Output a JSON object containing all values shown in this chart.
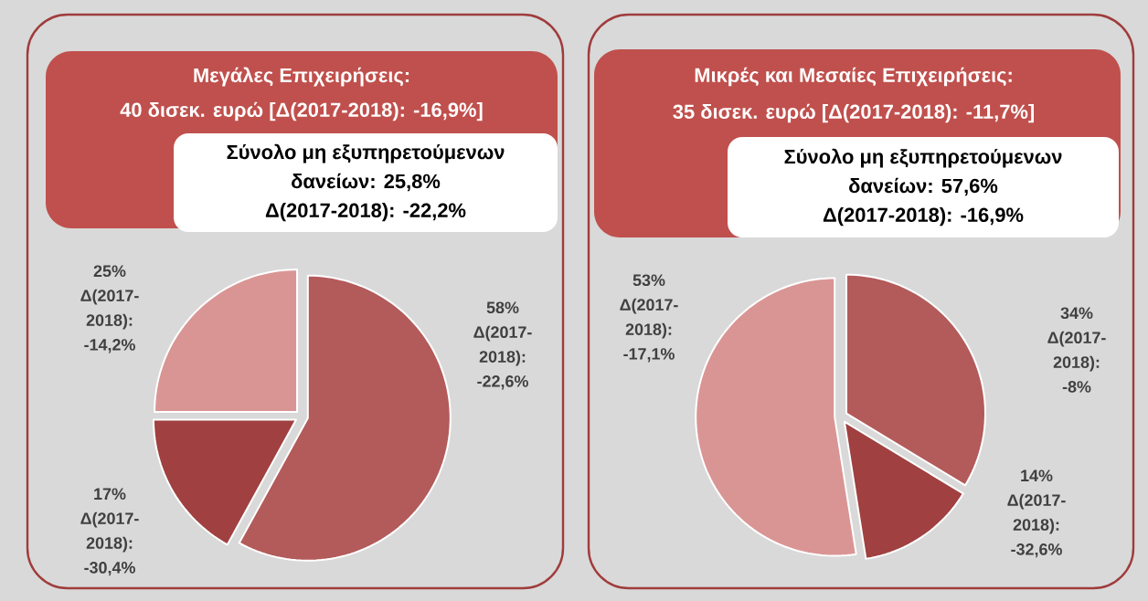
{
  "chart_data": [
    {
      "type": "pie",
      "title": "Μεγάλες Επιχειρήσεις:",
      "subtitle": "40 δισεκ. ευρώ [Δ(2017-2018): -16,9%]",
      "annotations": [
        "Σύνολο μη εξυπηρετούμενων",
        "δανείων: 25,8%",
        "Δ(2017-2018): -22,2%"
      ],
      "categories": [
        null,
        null,
        null
      ],
      "values": [
        58,
        17,
        25
      ],
      "colors": [
        "#b35a5a",
        "#a04040",
        "#d99594"
      ],
      "value_labels": [
        "58% Δ(2017-2018): -22,6%",
        "17% Δ(2017-2018): -30,4%",
        "25% Δ(2017-2018): -14,2%"
      ]
    },
    {
      "type": "pie",
      "title": "Μικρές και Μεσαίες Επιχειρήσεις:",
      "subtitle": "35 δισεκ. ευρώ [Δ(2017-2018): -11,7%]",
      "annotations": [
        "Σύνολο μη εξυπηρετούμενων",
        "δανείων: 57,6%",
        "Δ(2017-2018): -16,9%"
      ],
      "categories": [
        null,
        null,
        null
      ],
      "values": [
        34,
        14,
        53
      ],
      "colors": [
        "#b35a5a",
        "#a04040",
        "#d99594"
      ],
      "value_labels": [
        "34% Δ(2017-2018): -8%",
        "14% Δ(2017-2018): -32,6%",
        "53% Δ(2017-2018): -17,1%"
      ]
    }
  ]
}
